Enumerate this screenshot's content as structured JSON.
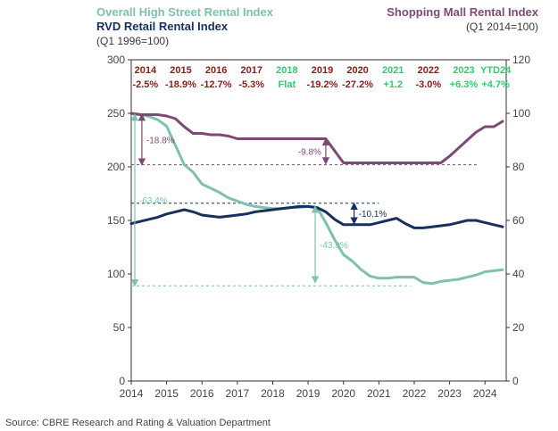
{
  "legend": {
    "high_street": "Overall High Street Rental Index",
    "rvd": "RVD Retail Rental Index",
    "left_base": "(Q1 1996=100)",
    "mall": "Shopping Mall Rental Index",
    "right_base": "(Q1 2014=100)"
  },
  "source": "Source: CBRE Research and Rating & Valuation Department",
  "colors": {
    "high_street": "#7fc1ad",
    "rvd": "#17305c",
    "mall": "#7d4a74",
    "negative": "#8b1a1a",
    "positive": "#2ecc71"
  },
  "chart_data": {
    "type": "line",
    "x_ticks": [
      "2014",
      "2015",
      "2016",
      "2017",
      "2018",
      "2019",
      "2020",
      "2021",
      "2022",
      "2023",
      "2024"
    ],
    "y_left_ticks": [
      "0",
      "50",
      "100",
      "150",
      "200",
      "250",
      "300"
    ],
    "y_right_ticks": [
      "0",
      "20",
      "40",
      "60",
      "80",
      "100",
      "120"
    ],
    "y_left_range": [
      0,
      300
    ],
    "y_right_range": [
      0,
      120
    ],
    "x_range": [
      2014,
      2024.6
    ],
    "series": [
      {
        "name": "Overall High Street Rental Index",
        "axis": "left",
        "color": "#7fc1ad",
        "x": [
          2014.0,
          2014.25,
          2014.5,
          2014.75,
          2015.0,
          2015.25,
          2015.5,
          2015.75,
          2016.0,
          2016.25,
          2016.5,
          2016.75,
          2017.0,
          2017.25,
          2017.5,
          2017.75,
          2018.0,
          2018.25,
          2018.5,
          2018.75,
          2019.0,
          2019.25,
          2019.5,
          2019.75,
          2020.0,
          2020.25,
          2020.5,
          2020.75,
          2021.0,
          2021.25,
          2021.5,
          2021.75,
          2022.0,
          2022.25,
          2022.5,
          2022.75,
          2023.0,
          2023.25,
          2023.5,
          2023.75,
          2024.0,
          2024.25,
          2024.5
        ],
        "y": [
          250,
          249,
          247,
          244,
          238,
          220,
          202,
          195,
          184,
          180,
          176,
          171,
          168,
          165,
          163,
          162,
          161,
          161,
          162,
          162,
          163,
          162,
          148,
          132,
          118,
          112,
          104,
          98,
          96,
          96,
          97,
          97,
          97,
          92,
          91,
          93,
          94,
          95,
          97,
          99,
          102,
          103,
          104
        ]
      },
      {
        "name": "RVD Retail Rental Index",
        "axis": "left",
        "color": "#17305c",
        "x": [
          2014.0,
          2014.25,
          2014.5,
          2014.75,
          2015.0,
          2015.25,
          2015.5,
          2015.75,
          2016.0,
          2016.25,
          2016.5,
          2016.75,
          2017.0,
          2017.25,
          2017.5,
          2017.75,
          2018.0,
          2018.25,
          2018.5,
          2018.75,
          2019.0,
          2019.25,
          2019.5,
          2019.75,
          2020.0,
          2020.25,
          2020.5,
          2020.75,
          2021.0,
          2021.25,
          2021.5,
          2021.75,
          2022.0,
          2022.25,
          2022.5,
          2022.75,
          2023.0,
          2023.25,
          2023.5,
          2023.75,
          2024.0,
          2024.25,
          2024.5
        ],
        "y": [
          147,
          149,
          151,
          153,
          156,
          158,
          160,
          158,
          155,
          154,
          153,
          154,
          155,
          156,
          158,
          159,
          160,
          161,
          162,
          163,
          163,
          162,
          158,
          151,
          146,
          146,
          146,
          146,
          148,
          150,
          152,
          147,
          143,
          143,
          144,
          145,
          146,
          148,
          150,
          150,
          148,
          146,
          144
        ]
      },
      {
        "name": "Shopping Mall Rental Index",
        "axis": "right",
        "color": "#7d4a74",
        "x": [
          2014.0,
          2014.25,
          2014.5,
          2014.75,
          2015.0,
          2015.25,
          2015.5,
          2015.75,
          2016.0,
          2016.25,
          2016.5,
          2016.75,
          2017.0,
          2017.25,
          2017.5,
          2017.75,
          2018.0,
          2018.25,
          2018.5,
          2018.75,
          2019.0,
          2019.25,
          2019.5,
          2019.75,
          2020.0,
          2020.25,
          2020.5,
          2020.75,
          2021.0,
          2021.25,
          2021.5,
          2021.75,
          2022.0,
          2022.25,
          2022.5,
          2022.75,
          2023.0,
          2023.25,
          2023.5,
          2023.75,
          2024.0,
          2024.25,
          2024.5
        ],
        "y": [
          100,
          99.5,
          99.5,
          99.5,
          99,
          98,
          95,
          92.5,
          92.5,
          92,
          92,
          91.5,
          90.5,
          90.5,
          90.5,
          90.5,
          90.5,
          90.5,
          90.5,
          90.5,
          90.5,
          90.5,
          90.5,
          86,
          81.5,
          81.5,
          81.5,
          81.5,
          81.5,
          81.5,
          81.5,
          81.5,
          81.5,
          81.5,
          81.5,
          81.5,
          84,
          87,
          90,
          93,
          95,
          95,
          97
        ]
      }
    ],
    "annual_labels": [
      {
        "year": "2014",
        "value": "-2.5%",
        "x": 2014.4,
        "tone": "negative"
      },
      {
        "year": "2015",
        "value": "-18.9%",
        "x": 2015.4,
        "tone": "negative"
      },
      {
        "year": "2016",
        "value": "-12.7%",
        "x": 2016.4,
        "tone": "negative"
      },
      {
        "year": "2017",
        "value": "-5.3%",
        "x": 2017.4,
        "tone": "negative"
      },
      {
        "year": "2018",
        "value": "Flat",
        "x": 2018.4,
        "tone": "positive"
      },
      {
        "year": "2019",
        "value": "-19.2%",
        "x": 2019.4,
        "tone": "negative"
      },
      {
        "year": "2020",
        "value": "-27.2%",
        "x": 2020.4,
        "tone": "negative"
      },
      {
        "year": "2021",
        "value": "+1.2",
        "x": 2021.4,
        "tone": "positive"
      },
      {
        "year": "2022",
        "value": "-3.0%",
        "x": 2022.4,
        "tone": "negative"
      },
      {
        "year": "2023",
        "value": "+6.3%",
        "x": 2023.4,
        "tone": "positive"
      },
      {
        "year": "YTD24",
        "value": "+4.7%",
        "x": 2024.3,
        "tone": "positive"
      }
    ],
    "reference_lines": [
      {
        "axis": "left",
        "y": 202,
        "x_from": 2014.0,
        "x_to": 2023.8,
        "color": "#7d4a74"
      },
      {
        "axis": "left",
        "y": 166,
        "x_from": 2014.0,
        "x_to": 2021.0,
        "color": "#17305c"
      },
      {
        "axis": "left",
        "y": 89,
        "x_from": 2014.0,
        "x_to": 2021.9,
        "color": "#7fc1ad"
      }
    ],
    "change_arrows": [
      {
        "label": "-18.8%",
        "x": 2014.3,
        "y_from": 249,
        "y_to": 202,
        "color": "#7d4a74",
        "label_side": "right"
      },
      {
        "label": "-9.8%",
        "x": 2019.5,
        "y_from": 226,
        "y_to": 203,
        "color": "#7d4a74",
        "label_side": "left"
      },
      {
        "label": "-63.4%",
        "x": 2014.1,
        "y_from": 249,
        "y_to": 89,
        "color": "#7fc1ad",
        "label_side": "right"
      },
      {
        "label": "-10.1%",
        "x": 2020.3,
        "y_from": 166,
        "y_to": 147,
        "color": "#17305c",
        "label_side": "right"
      },
      {
        "label": "-43.9%",
        "x": 2019.2,
        "y_from": 163,
        "y_to": 92,
        "color": "#7fc1ad",
        "label_side": "right"
      }
    ]
  }
}
